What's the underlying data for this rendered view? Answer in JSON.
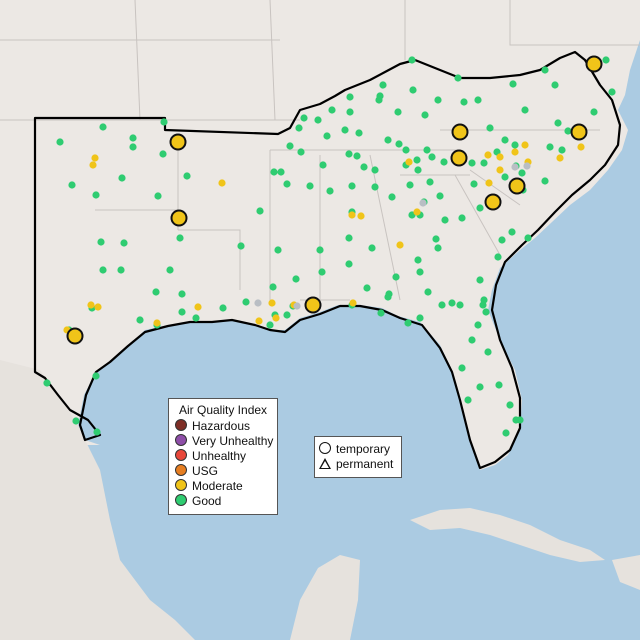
{
  "colors": {
    "ocean": "#abcbe2",
    "land": "#ece8e4",
    "land_mexico": "#e6e2dd",
    "state_border": "#c8c3c0",
    "region_outline": "#000000",
    "hazardous": "#7e2e26",
    "very_unhealthy": "#8e4ea8",
    "unhealthy": "#e8473a",
    "usg": "#e67e22",
    "moderate": "#f0c419",
    "good": "#2fcc71",
    "no_data": "#b9bec4"
  },
  "legend_aqi": {
    "title": "Air Quality Index",
    "items": [
      {
        "label": "Hazardous",
        "color": "#7e2e26"
      },
      {
        "label": "Very Unhealthy",
        "color": "#8e4ea8"
      },
      {
        "label": "Unhealthy",
        "color": "#e8473a"
      },
      {
        "label": "USG",
        "color": "#e67e22"
      },
      {
        "label": "Moderate",
        "color": "#f0c419"
      },
      {
        "label": "Good",
        "color": "#2fcc71"
      }
    ]
  },
  "legend_shape": {
    "temporary_label": "temporary",
    "permanent_label": "permanent",
    "temporary_icon": "circle-icon",
    "permanent_icon": "triangle-icon"
  }
}
